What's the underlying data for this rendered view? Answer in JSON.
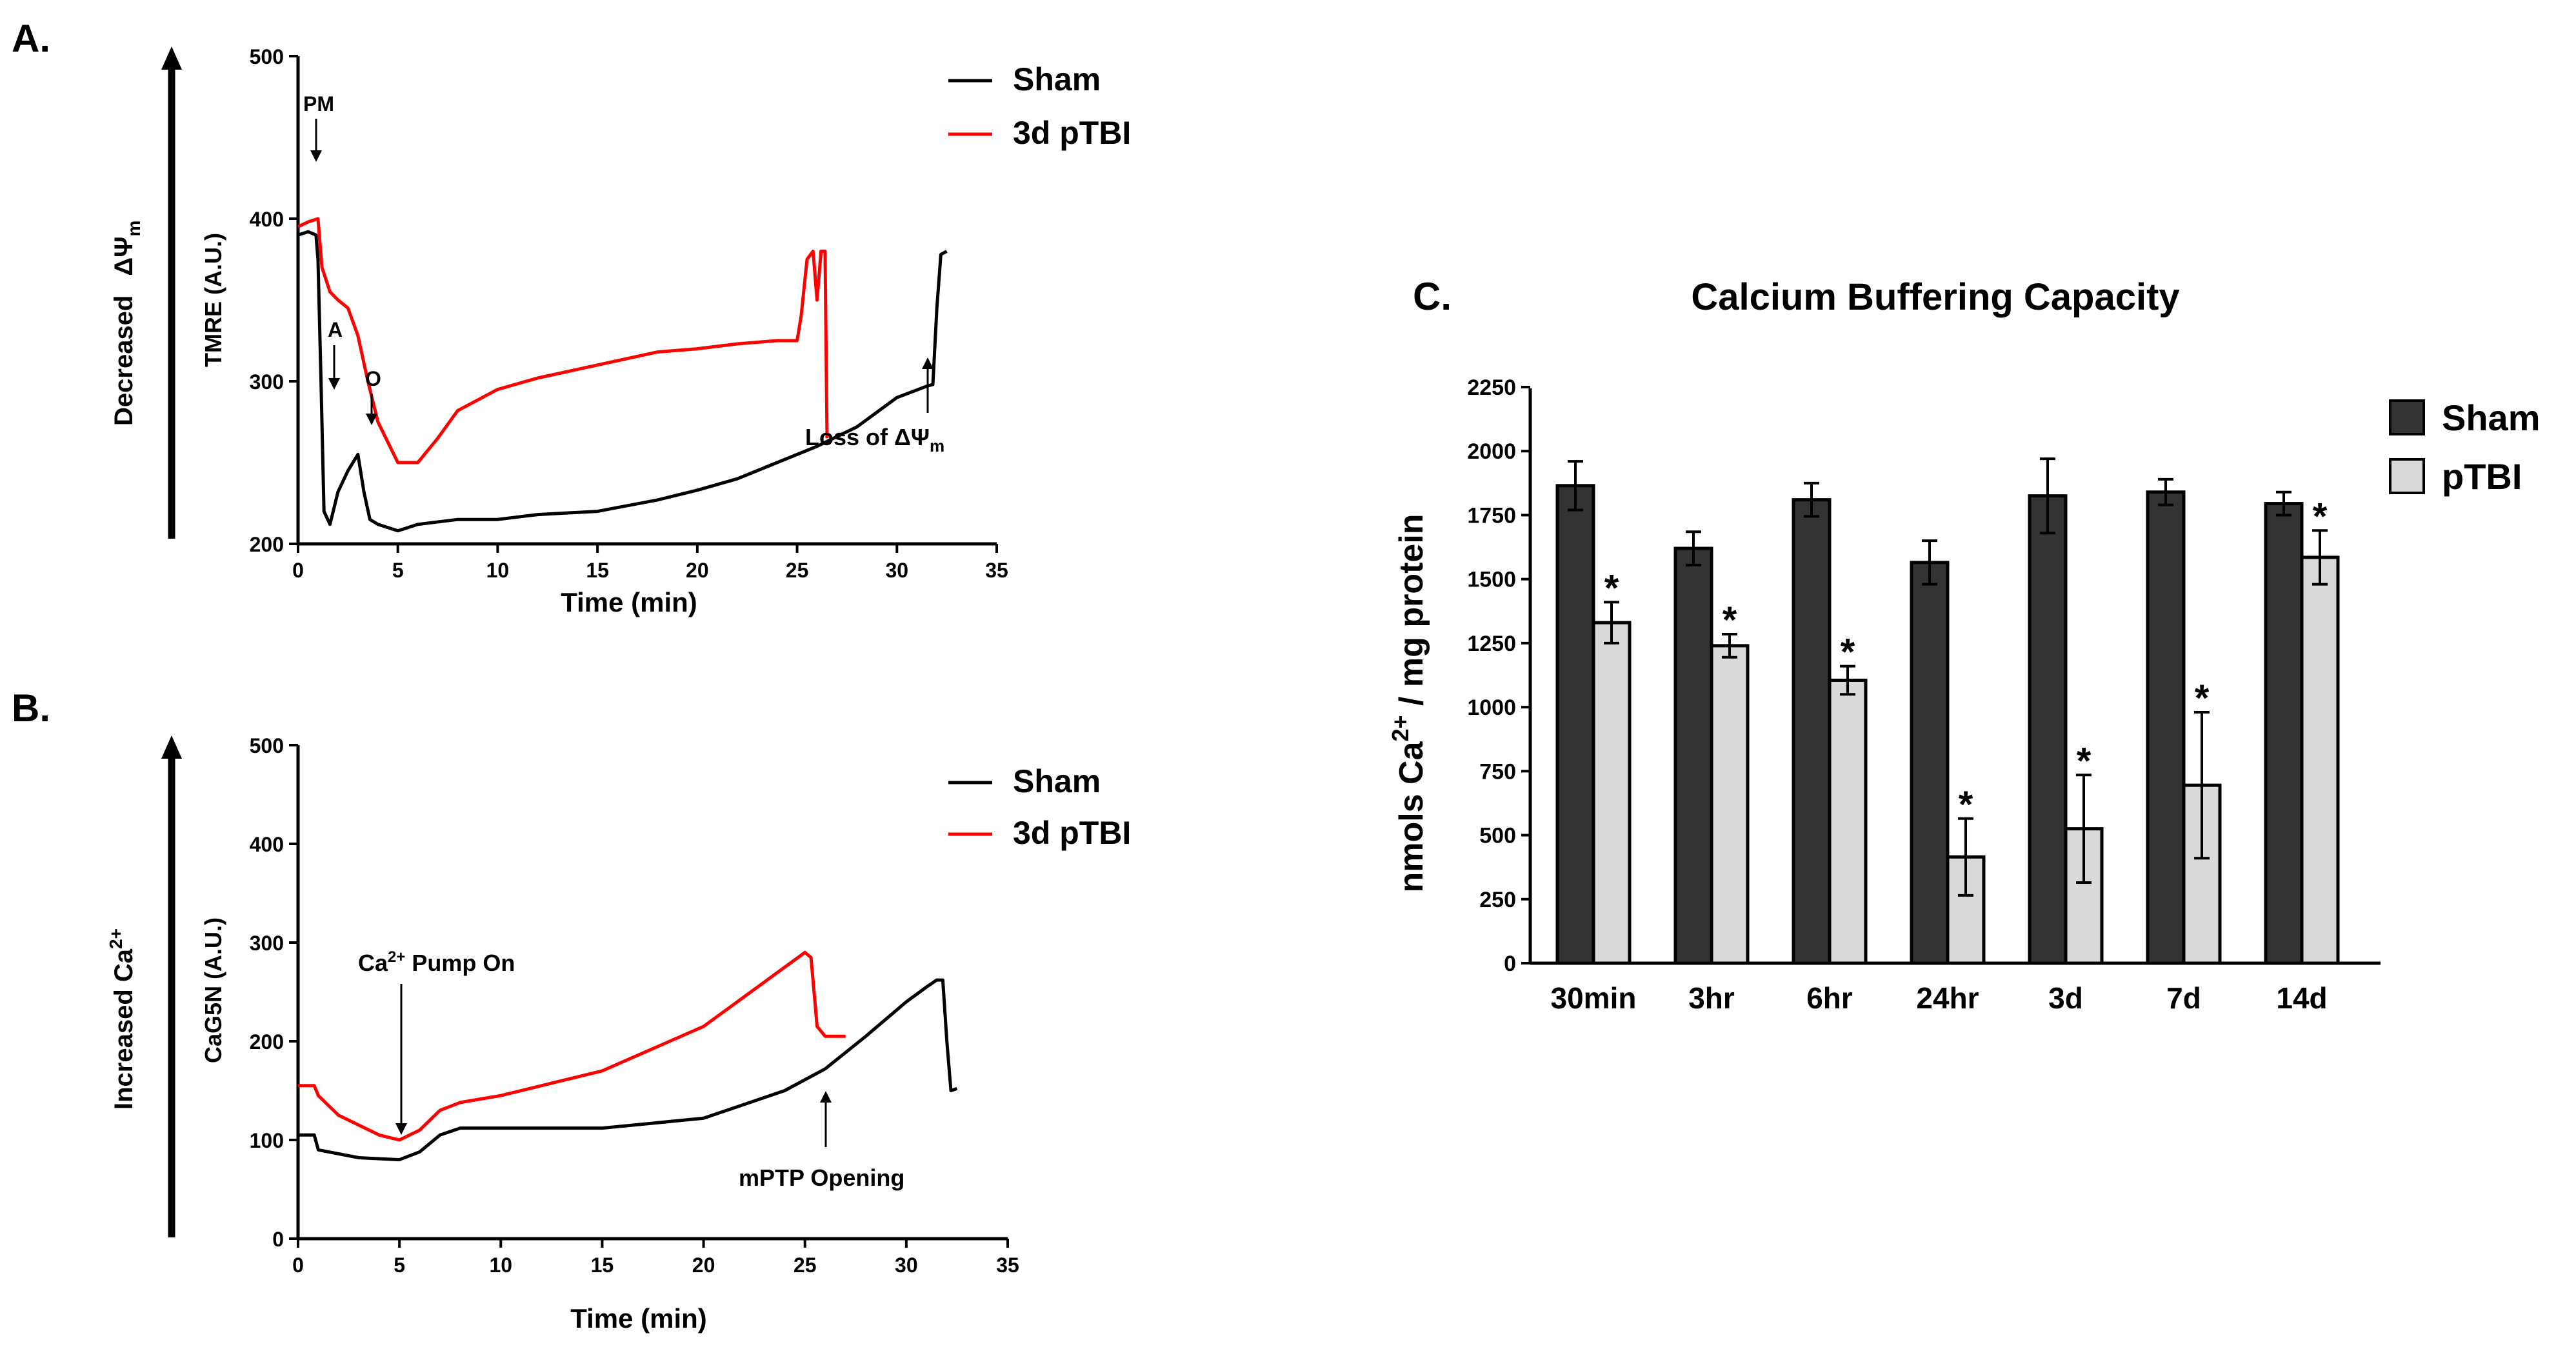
{
  "colors": {
    "sham_line": "#000000",
    "tbi_line": "#ff0000",
    "sham_bar": "#333333",
    "tbi_bar": "#d9d9d9"
  },
  "chart_data": [
    {
      "id": "A",
      "panel_label": "A.",
      "type": "line",
      "ylabel": "TMRE (A.U.)",
      "xlabel": "Time (min)",
      "side_arrow_label": "Decreased",
      "side_arrow_symbol": "ΔΨ",
      "side_arrow_sub": "m",
      "xlim": [
        0,
        35
      ],
      "ylim": [
        200,
        500
      ],
      "xticks": [
        0,
        5,
        10,
        15,
        20,
        25,
        30,
        35
      ],
      "yticks": [
        200,
        300,
        400,
        500
      ],
      "legend": [
        "Sham",
        "3d pTBI"
      ],
      "series": [
        {
          "name": "Sham",
          "x": [
            0,
            0.5,
            0.9,
            1.0,
            1.15,
            1.3,
            1.6,
            2.0,
            2.5,
            3.0,
            3.3,
            3.6,
            4.0,
            5.0,
            6.0,
            8.0,
            10.0,
            12.0,
            15.0,
            18.0,
            20.0,
            22.0,
            24.0,
            26.0,
            28.0,
            30.0,
            31.5,
            31.8,
            32.0,
            32.2,
            32.5
          ],
          "y": [
            390,
            392,
            390,
            375,
            300,
            220,
            212,
            232,
            245,
            255,
            232,
            215,
            212,
            208,
            212,
            215,
            215,
            218,
            220,
            227,
            233,
            240,
            250,
            260,
            272,
            290,
            297,
            298,
            345,
            378,
            380
          ]
        },
        {
          "name": "3d pTBI",
          "x": [
            0,
            0.5,
            1.0,
            1.2,
            1.6,
            2.0,
            2.5,
            3.0,
            3.5,
            4.0,
            5.0,
            6.0,
            7.0,
            8.0,
            10.0,
            12.0,
            15.0,
            18.0,
            20.0,
            22.0,
            24.0,
            25.0,
            25.2,
            25.5,
            25.8,
            26.0,
            26.2,
            26.4,
            26.5
          ],
          "y": [
            395,
            398,
            400,
            370,
            355,
            350,
            345,
            328,
            300,
            275,
            250,
            250,
            265,
            282,
            295,
            302,
            310,
            318,
            320,
            323,
            325,
            325,
            340,
            375,
            380,
            350,
            380,
            380,
            265
          ]
        }
      ],
      "annotations": {
        "pm": "PM",
        "a": "A",
        "o": "O",
        "loss_prefix": "Loss of ",
        "loss_symbol": "ΔΨ",
        "loss_sub": "m"
      }
    },
    {
      "id": "B",
      "panel_label": "B.",
      "type": "line",
      "ylabel": "CaG5N (A.U.)",
      "xlabel": "Time (min)",
      "side_arrow_label": "Increased  Ca",
      "side_arrow_sup": "2+",
      "xlim": [
        0,
        35
      ],
      "ylim": [
        0,
        500
      ],
      "xticks": [
        0,
        5,
        10,
        15,
        20,
        25,
        30,
        35
      ],
      "yticks": [
        0,
        100,
        200,
        300,
        400,
        500
      ],
      "legend": [
        "Sham",
        "3d pTBI"
      ],
      "series": [
        {
          "name": "Sham",
          "x": [
            0,
            0.8,
            1.0,
            1.5,
            3.0,
            5.0,
            6.0,
            7.0,
            8.0,
            10.0,
            15.0,
            20.0,
            24.0,
            26.0,
            28.0,
            30.0,
            31.0,
            31.5,
            31.8,
            32.0,
            32.2,
            32.5
          ],
          "y": [
            105,
            105,
            90,
            88,
            82,
            80,
            88,
            105,
            112,
            112,
            112,
            122,
            150,
            172,
            205,
            240,
            255,
            262,
            262,
            200,
            150,
            152
          ]
        },
        {
          "name": "3d pTBI",
          "x": [
            0,
            0.8,
            1.0,
            1.5,
            2.0,
            3.0,
            4.0,
            5.0,
            6.0,
            7.0,
            8.0,
            10.0,
            15.0,
            20.0,
            23.0,
            25.0,
            25.3,
            25.6,
            26.0,
            26.5,
            27.0
          ],
          "y": [
            155,
            155,
            145,
            135,
            125,
            115,
            105,
            100,
            110,
            130,
            138,
            145,
            170,
            215,
            260,
            290,
            285,
            215,
            205,
            205,
            205
          ]
        }
      ],
      "annotations": {
        "pump_prefix": "Ca",
        "pump_sup": "2+",
        "pump_suffix": " Pump On",
        "mptp": "mPTP Opening"
      }
    },
    {
      "id": "C",
      "panel_label": "C.",
      "type": "bar",
      "title": "Calcium Buffering Capacity",
      "ylabel_prefix": "nmols Ca",
      "ylabel_sup": "2+",
      "ylabel_suffix": " / mg protein",
      "categories": [
        "30min",
        "3hr",
        "6hr",
        "24hr",
        "3d",
        "7d",
        "14d"
      ],
      "ylim": [
        0,
        2250
      ],
      "yticks": [
        0,
        250,
        500,
        750,
        1000,
        1250,
        1500,
        1750,
        2000,
        2250
      ],
      "legend": [
        "Sham",
        "pTBI"
      ],
      "series": [
        {
          "name": "Sham",
          "values": [
            1865,
            1620,
            1810,
            1565,
            1825,
            1840,
            1795
          ],
          "errors": [
            95,
            65,
            65,
            85,
            145,
            50,
            45
          ]
        },
        {
          "name": "pTBI",
          "values": [
            1330,
            1240,
            1105,
            415,
            525,
            695,
            1585
          ],
          "errors": [
            80,
            45,
            55,
            150,
            210,
            285,
            105
          ]
        }
      ],
      "significance": [
        "*",
        "*",
        "*",
        "*",
        "*",
        "*",
        "*"
      ]
    }
  ]
}
